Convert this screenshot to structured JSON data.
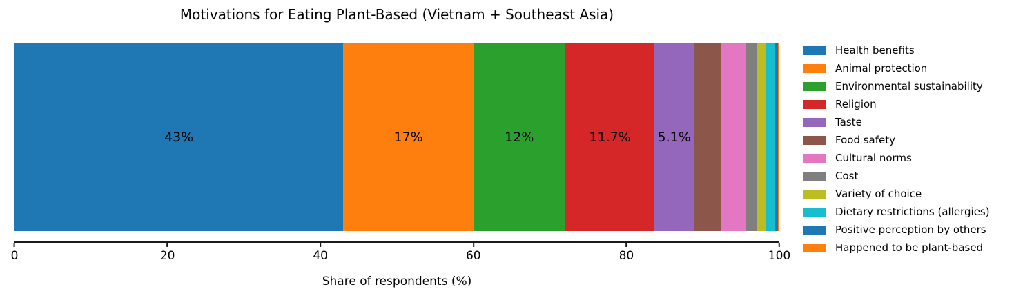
{
  "chart_data": {
    "type": "bar",
    "variant": "horizontal-stacked",
    "title": "Motivations for Eating Plant-Based (Vietnam + Southeast Asia)",
    "xlabel": "Share of respondents (%)",
    "xlim": [
      0,
      100
    ],
    "xticks": [
      0,
      20,
      40,
      60,
      80,
      100
    ],
    "grid": false,
    "legend_position": "right-outside",
    "axis_color": "#1a1a1a",
    "series": [
      {
        "name": "Health benefits",
        "value": 43,
        "label": "43%",
        "color": "#1f77b4"
      },
      {
        "name": "Animal protection",
        "value": 17,
        "label": "17%",
        "color": "#ff7f0e"
      },
      {
        "name": "Environmental sustainability",
        "value": 12,
        "label": "12%",
        "color": "#2ca02c"
      },
      {
        "name": "Religion",
        "value": 11.7,
        "label": "11.7%",
        "color": "#d62728"
      },
      {
        "name": "Taste",
        "value": 5.1,
        "label": "5.1%",
        "color": "#9467bd"
      },
      {
        "name": "Food safety",
        "value": 3.5,
        "label": "",
        "color": "#8c564b"
      },
      {
        "name": "Cultural norms",
        "value": 3.4,
        "label": "",
        "color": "#e377c2"
      },
      {
        "name": "Cost",
        "value": 1.3,
        "label": "",
        "color": "#7f7f7f"
      },
      {
        "name": "Variety of choice",
        "value": 1.2,
        "label": "",
        "color": "#bcbd22"
      },
      {
        "name": "Dietary restrictions (allergies)",
        "value": 1.3,
        "label": "",
        "color": "#17becf"
      },
      {
        "name": "Positive perception by others",
        "value": 0.3,
        "label": "",
        "color": "#1f77b4"
      },
      {
        "name": "Happened to be plant-based",
        "value": 0.2,
        "label": "",
        "color": "#ff7f0e"
      }
    ]
  }
}
